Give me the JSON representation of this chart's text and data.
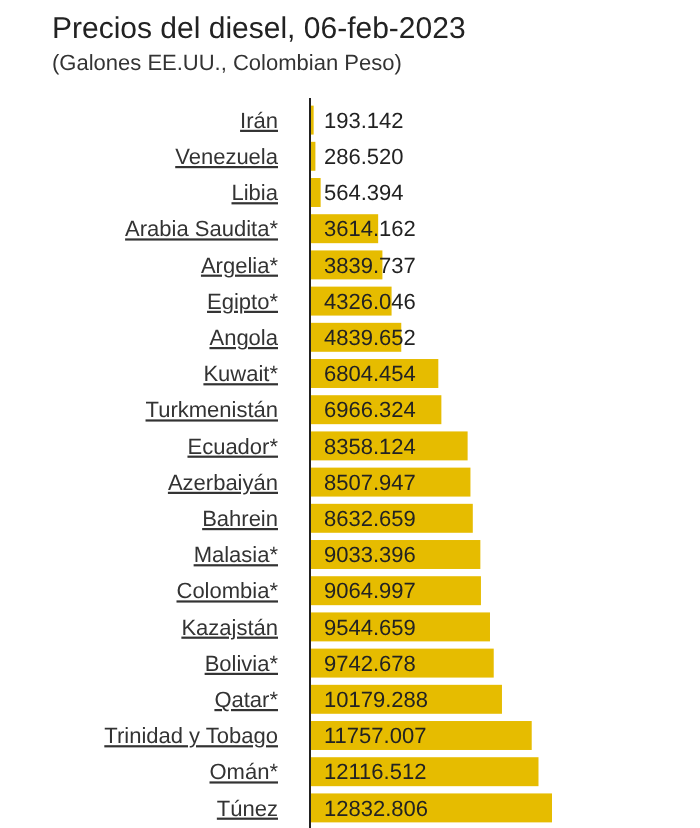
{
  "chart_data": {
    "type": "bar",
    "orientation": "horizontal",
    "title": "Precios del diesel, 06-feb-2023",
    "subtitle": "(Galones EE.UU., Colombian Peso)",
    "categories": [
      "Irán",
      "Venezuela",
      "Libia",
      "Arabia Saudita*",
      "Argelia*",
      "Egipto*",
      "Angola",
      "Kuwait*",
      "Turkmenistán",
      "Ecuador*",
      "Azerbaiyán",
      "Bahrein",
      "Malasia*",
      "Colombia*",
      "Kazajstán",
      "Bolivia*",
      "Qatar*",
      "Trinidad y Tobago",
      "Omán*",
      "Túnez"
    ],
    "values": [
      193.142,
      286.52,
      564.394,
      3614.162,
      3839.737,
      4326.046,
      4839.652,
      6804.454,
      6966.324,
      8358.124,
      8507.947,
      8632.659,
      9033.396,
      9064.997,
      9544.659,
      9742.678,
      10179.288,
      11757.007,
      12116.512,
      12832.806
    ],
    "value_labels": [
      "193.142",
      "286.520",
      "564.394",
      "3614.162",
      "3839.737",
      "4326.046",
      "4839.652",
      "6804.454",
      "6966.324",
      "8358.124",
      "8507.947",
      "8632.659",
      "9033.396",
      "9064.997",
      "9544.659",
      "9742.678",
      "10179.288",
      "11757.007",
      "12116.512",
      "12832.806"
    ],
    "color": "#e6bc00"
  }
}
